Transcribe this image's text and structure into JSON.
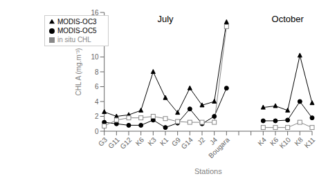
{
  "chart_data": {
    "type": "line",
    "xlabel": "Stations",
    "ylabel": "CHL A (mg.m⁻³)",
    "categories": [
      "G3",
      "G11",
      "G12",
      "K6",
      "K3",
      "K1",
      "G9",
      "G14",
      "J2",
      "J4",
      "Bougara",
      null,
      null,
      "K4",
      "K6",
      "K10",
      "K8",
      "K11"
    ],
    "series": [
      {
        "name": "MODIS-OC3",
        "color": "#000000",
        "marker": "triangle",
        "values": [
          2.6,
          2.0,
          2.2,
          2.8,
          8.0,
          4.5,
          2.5,
          5.8,
          3.5,
          4.0,
          14.7,
          null,
          null,
          3.2,
          3.4,
          2.8,
          10.2,
          3.8
        ]
      },
      {
        "name": "MODIS-OC5",
        "color": "#000000",
        "marker": "circle",
        "values": [
          1.2,
          1.0,
          0.8,
          0.8,
          1.5,
          0.5,
          1.1,
          3.0,
          1.0,
          2.0,
          5.8,
          null,
          null,
          1.4,
          1.4,
          1.5,
          4.0,
          1.8
        ]
      },
      {
        "name": "in situ CHL",
        "color": "#888888",
        "marker": "square_open",
        "values": [
          0.7,
          1.5,
          1.8,
          1.8,
          2.0,
          1.7,
          1.3,
          1.2,
          1.2,
          1.2,
          14.1,
          null,
          null,
          0.5,
          0.5,
          0.5,
          1.2,
          0.5
        ]
      }
    ],
    "annotations": [
      "July",
      "October"
    ],
    "ylim": [
      0,
      16
    ],
    "yticks": [
      0,
      2,
      4,
      6,
      8,
      10,
      12,
      14,
      16
    ],
    "grid": false,
    "legend": "upper left"
  }
}
